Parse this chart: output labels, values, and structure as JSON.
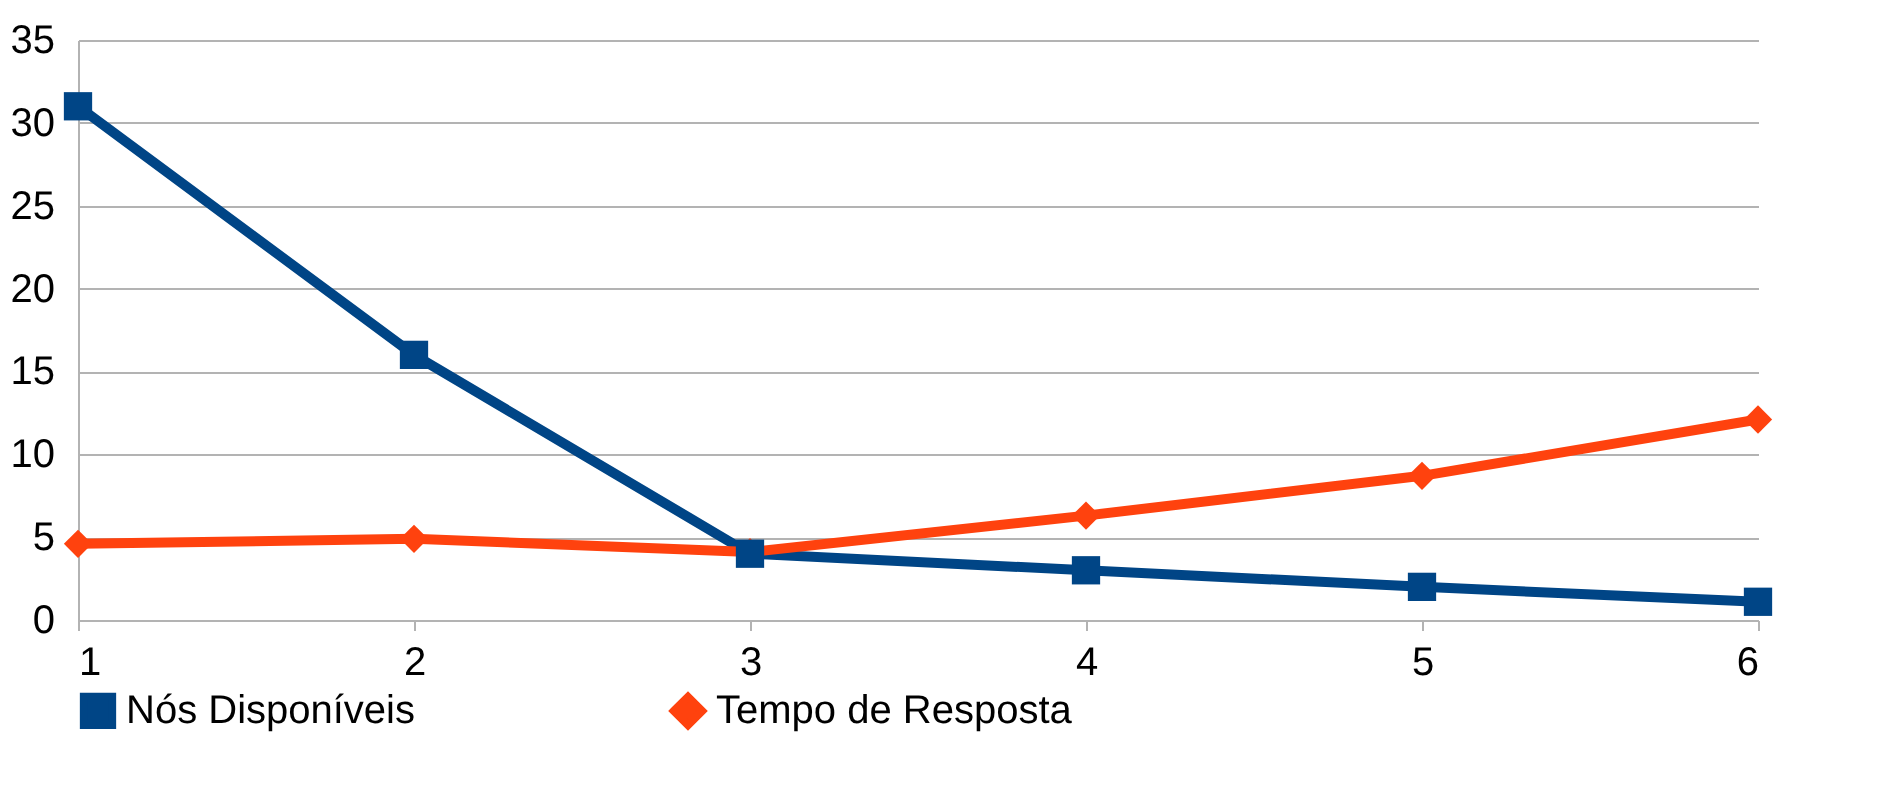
{
  "chart_data": {
    "type": "line",
    "x": [
      1,
      2,
      3,
      4,
      5,
      6
    ],
    "xlim": [
      1,
      6
    ],
    "xticks": [
      1,
      2,
      3,
      4,
      5,
      6
    ],
    "ylim": [
      0,
      35
    ],
    "yticks": [
      0,
      5,
      10,
      15,
      20,
      25,
      30,
      35
    ],
    "grid": "y",
    "legend": "bottom",
    "line_style": "solid",
    "series": [
      {
        "name": "Nós Disponíveis",
        "color": "#004586",
        "marker": "square",
        "values": [
          31,
          16,
          4,
          3,
          2,
          1.1
        ]
      },
      {
        "name": "Tempo de Resposta",
        "color": "#ff420e",
        "marker": "diamond",
        "values": [
          4.6,
          4.9,
          4.1,
          6.3,
          8.7,
          12.1
        ]
      }
    ]
  }
}
